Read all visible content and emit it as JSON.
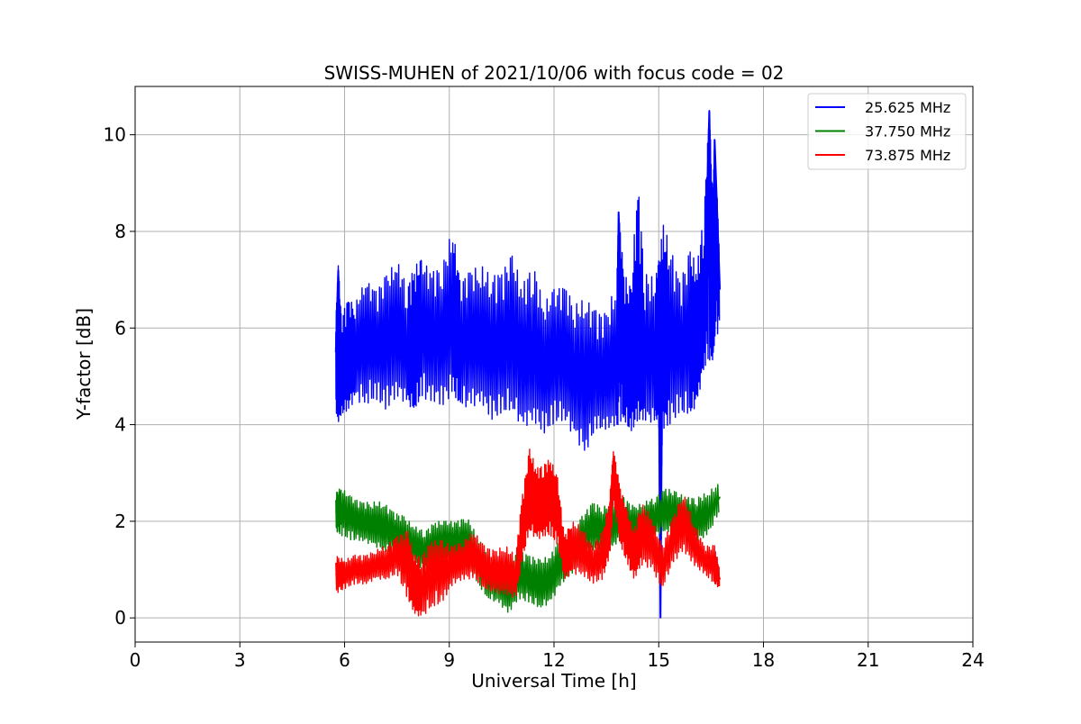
{
  "chart_data": {
    "type": "line",
    "title": "SWISS-MUHEN of 2021/10/06 with focus code = 02",
    "xlabel": "Universal Time [h]",
    "ylabel": "Y-factor [dB]",
    "xlim": [
      0,
      24
    ],
    "ylim": [
      -0.5,
      11
    ],
    "xticks": [
      0,
      3,
      6,
      9,
      12,
      15,
      18,
      21,
      24
    ],
    "yticks": [
      0,
      2,
      4,
      6,
      8,
      10
    ],
    "grid": true,
    "legend_position": "top-right",
    "series": [
      {
        "name": "25.625 MHz",
        "color": "#0000ff",
        "x": [
          5.75,
          5.82,
          5.9,
          6.1,
          6.3,
          6.6,
          6.9,
          7.2,
          7.5,
          7.8,
          8.0,
          8.2,
          8.5,
          8.8,
          9.1,
          9.3,
          9.6,
          9.9,
          10.2,
          10.5,
          10.8,
          11.1,
          11.4,
          11.7,
          12.0,
          12.3,
          12.6,
          12.9,
          13.2,
          13.5,
          13.8,
          13.85,
          14.0,
          14.2,
          14.4,
          14.6,
          14.9,
          15.0,
          15.05,
          15.1,
          15.3,
          15.6,
          15.9,
          16.1,
          16.3,
          16.45,
          16.55,
          16.6,
          16.75
        ],
        "y": [
          5.5,
          7.2,
          4.6,
          5.6,
          5.4,
          6.2,
          5.5,
          5.7,
          6.0,
          5.4,
          5.2,
          6.3,
          5.6,
          5.9,
          6.1,
          5.5,
          5.8,
          5.4,
          5.6,
          5.3,
          5.9,
          5.1,
          5.5,
          5.0,
          5.3,
          5.6,
          4.9,
          5.1,
          4.7,
          4.6,
          5.0,
          8.4,
          5.2,
          4.8,
          5.4,
          5.0,
          5.1,
          5.5,
          0.0,
          5.3,
          5.7,
          5.4,
          5.6,
          5.5,
          6.2,
          10.5,
          6.4,
          9.9,
          6.8
        ],
        "ymin": [
          4.3,
          4.0,
          4.2,
          4.3,
          4.5,
          4.4,
          4.5,
          4.3,
          4.6,
          4.4,
          4.3,
          4.5,
          4.5,
          4.4,
          4.6,
          4.4,
          4.3,
          4.5,
          4.1,
          4.2,
          4.3,
          3.9,
          4.1,
          3.8,
          4.0,
          4.1,
          3.7,
          3.4,
          3.9,
          3.9,
          4.0,
          4.0,
          4.1,
          3.8,
          4.1,
          4.1,
          4.0,
          4.2,
          0.0,
          3.9,
          4.0,
          4.2,
          4.2,
          4.4,
          5.2,
          5.3,
          5.3,
          5.7,
          6.0
        ],
        "ymax": [
          6.2,
          7.3,
          6.3,
          6.6,
          6.5,
          7.0,
          6.8,
          7.1,
          7.4,
          6.9,
          7.3,
          7.4,
          7.2,
          7.3,
          8.1,
          7.0,
          7.2,
          7.3,
          7.1,
          7.2,
          7.5,
          6.9,
          7.4,
          6.5,
          6.8,
          6.9,
          6.5,
          6.6,
          6.4,
          6.3,
          7.0,
          8.4,
          7.2,
          6.8,
          9.1,
          7.2,
          7.0,
          7.4,
          7.6,
          8.2,
          7.8,
          7.0,
          7.6,
          7.3,
          8.5,
          10.5,
          8.7,
          9.9,
          7.5
        ]
      },
      {
        "name": "37.750 MHz",
        "color": "#008000",
        "x": [
          5.75,
          5.9,
          6.2,
          6.5,
          6.8,
          7.1,
          7.4,
          7.7,
          8.0,
          8.3,
          8.6,
          8.9,
          9.2,
          9.5,
          9.8,
          10.1,
          10.4,
          10.7,
          11.0,
          11.3,
          11.6,
          11.9,
          12.2,
          12.5,
          12.8,
          13.1,
          13.4,
          13.7,
          14.0,
          14.3,
          14.6,
          14.9,
          15.2,
          15.5,
          15.8,
          16.1,
          16.4,
          16.75
        ],
        "y": [
          2.2,
          2.3,
          2.1,
          2.0,
          1.9,
          1.9,
          1.8,
          1.6,
          1.5,
          1.4,
          1.5,
          1.6,
          1.6,
          1.7,
          1.2,
          0.8,
          0.7,
          0.6,
          0.9,
          0.8,
          0.7,
          0.8,
          1.2,
          1.3,
          1.6,
          1.9,
          1.8,
          1.9,
          2.0,
          1.9,
          2.0,
          2.1,
          2.2,
          2.1,
          2.1,
          2.0,
          2.1,
          2.5
        ],
        "ymin": [
          1.8,
          1.7,
          1.6,
          1.6,
          1.5,
          1.4,
          1.3,
          1.1,
          1.1,
          1.0,
          1.0,
          1.1,
          1.1,
          1.1,
          0.7,
          0.4,
          0.3,
          0.1,
          0.4,
          0.3,
          0.2,
          0.3,
          0.7,
          0.9,
          1.2,
          1.4,
          1.4,
          1.5,
          1.6,
          1.5,
          1.6,
          1.7,
          1.8,
          1.7,
          1.7,
          1.6,
          1.7,
          2.2
        ],
        "ymax": [
          2.6,
          2.7,
          2.5,
          2.4,
          2.4,
          2.4,
          2.2,
          2.1,
          1.9,
          1.8,
          2.0,
          2.0,
          2.0,
          2.1,
          1.7,
          1.3,
          1.2,
          1.1,
          1.4,
          1.3,
          1.2,
          1.3,
          1.7,
          1.7,
          2.1,
          2.4,
          2.3,
          2.4,
          2.5,
          2.3,
          2.4,
          2.5,
          2.7,
          2.6,
          2.5,
          2.5,
          2.6,
          2.8
        ]
      },
      {
        "name": "73.875 MHz",
        "color": "#ff0000",
        "x": [
          5.75,
          6.0,
          6.3,
          6.6,
          6.9,
          7.2,
          7.5,
          7.8,
          8.0,
          8.2,
          8.5,
          8.8,
          9.1,
          9.4,
          9.7,
          10.0,
          10.3,
          10.6,
          10.9,
          11.1,
          11.3,
          11.5,
          11.7,
          11.9,
          12.1,
          12.3,
          12.5,
          12.8,
          13.1,
          13.4,
          13.6,
          13.7,
          13.9,
          14.1,
          14.3,
          14.5,
          14.8,
          15.1,
          15.4,
          15.7,
          16.0,
          16.3,
          16.6,
          16.75
        ],
        "y": [
          0.9,
          0.9,
          1.0,
          1.0,
          1.1,
          1.1,
          1.3,
          1.2,
          0.6,
          0.5,
          1.2,
          0.9,
          1.1,
          1.2,
          1.3,
          1.0,
          0.9,
          0.9,
          0.8,
          1.8,
          2.6,
          2.3,
          2.4,
          2.5,
          2.2,
          1.2,
          1.5,
          1.4,
          1.1,
          1.3,
          2.0,
          3.3,
          2.2,
          1.7,
          1.3,
          1.8,
          1.6,
          1.0,
          1.6,
          2.0,
          1.5,
          1.2,
          1.1,
          0.8
        ],
        "ymin": [
          0.5,
          0.6,
          0.7,
          0.7,
          0.8,
          0.8,
          0.9,
          0.4,
          0.1,
          0.0,
          0.2,
          0.3,
          0.7,
          0.8,
          0.8,
          0.6,
          0.5,
          0.5,
          0.4,
          1.2,
          1.8,
          1.6,
          1.7,
          1.7,
          1.5,
          0.8,
          0.9,
          0.9,
          0.7,
          0.8,
          1.3,
          2.3,
          1.5,
          1.1,
          0.8,
          1.1,
          1.0,
          0.6,
          1.1,
          1.4,
          1.1,
          0.9,
          0.7,
          0.6
        ],
        "ymax": [
          1.3,
          1.2,
          1.3,
          1.3,
          1.4,
          1.5,
          1.7,
          1.8,
          1.3,
          1.3,
          1.6,
          1.6,
          1.5,
          1.6,
          1.8,
          1.5,
          1.4,
          1.5,
          1.3,
          2.6,
          3.5,
          3.1,
          3.2,
          3.3,
          2.9,
          1.7,
          2.0,
          1.9,
          1.5,
          1.8,
          2.5,
          3.5,
          2.7,
          2.2,
          1.8,
          2.4,
          2.1,
          1.5,
          2.1,
          2.6,
          2.0,
          1.5,
          1.5,
          1.0
        ]
      }
    ]
  }
}
